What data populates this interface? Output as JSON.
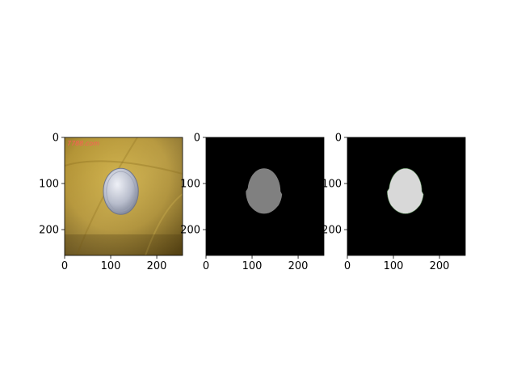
{
  "chart_data": [
    {
      "type": "image",
      "panel": "original photo",
      "image": "yellow cloth background with silver coin",
      "watermark_text": "7788.com",
      "xlim": [
        0,
        256
      ],
      "ylim": [
        256,
        0
      ],
      "xticks": [
        0,
        100,
        200
      ],
      "yticks": [
        0,
        100,
        200
      ],
      "xtick_labels": [
        "0",
        "100",
        "200"
      ],
      "ytick_labels": [
        "0",
        "100",
        "200"
      ],
      "coin": {
        "cx": 122,
        "cy": 117,
        "rx": 38,
        "ry": 50
      }
    },
    {
      "type": "image",
      "panel": "mask gray",
      "image": "gray mask on black background",
      "fill_color": "#808080",
      "xlim": [
        0,
        256
      ],
      "ylim": [
        256,
        0
      ],
      "xticks": [
        0,
        100,
        200
      ],
      "yticks": [
        0,
        100,
        200
      ],
      "xtick_labels": [
        "0",
        "100",
        "200"
      ],
      "ytick_labels": [
        "0",
        "100",
        "200"
      ],
      "region": {
        "cx": 126,
        "cy": 117,
        "rx": 38,
        "ry": 50
      }
    },
    {
      "type": "image",
      "panel": "mask light",
      "image": "light gray mask on black background",
      "fill_color": "#d8d8d8",
      "xlim": [
        0,
        256
      ],
      "ylim": [
        256,
        0
      ],
      "xticks": [
        0,
        100,
        200
      ],
      "yticks": [
        0,
        100,
        200
      ],
      "xtick_labels": [
        "0",
        "100",
        "200"
      ],
      "ytick_labels": [
        "0",
        "100",
        "200"
      ],
      "region": {
        "cx": 126,
        "cy": 117,
        "rx": 38,
        "ry": 50
      }
    }
  ],
  "colors": {
    "cloth_light": "#c9a93a",
    "cloth_mid": "#a8862a",
    "cloth_dark": "#5f4a12",
    "coin_light": "#e4e7f0",
    "coin_mid": "#aeb4c6",
    "coin_dark": "#7a8196",
    "watermark": "#ff5a5a",
    "background": "#000000"
  }
}
